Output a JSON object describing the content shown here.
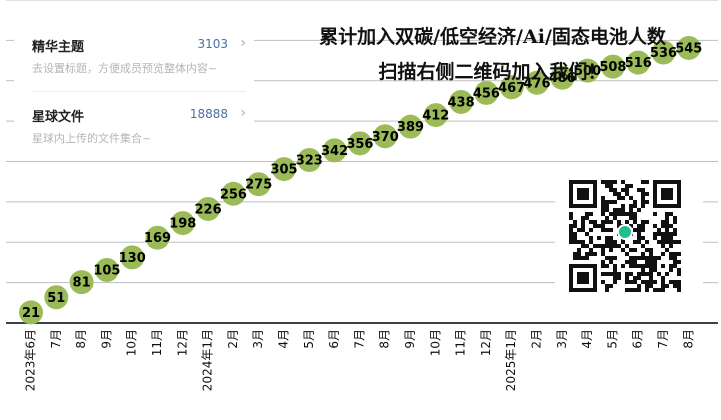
{
  "card": {
    "row1": {
      "title": "精华主题",
      "count": "3103",
      "subtitle": "去设置标题，方便成员预览整体内容~"
    },
    "row2": {
      "title": "星球文件",
      "count": "18888",
      "subtitle": "星球内上传的文件集合~"
    }
  },
  "headline": {
    "line1": "累计加入双碳/低空经济/Ai/固态电池人数",
    "line2": "扫描右侧二维码加入我们！"
  },
  "colors": {
    "point": "#9bbb59",
    "grid": "#bfbfbf",
    "axis": "#404040"
  },
  "chart_data": {
    "type": "line",
    "categories": [
      "2023年6月",
      "7月",
      "8月",
      "9月",
      "10月",
      "11月",
      "12月",
      "2024年1月",
      "2月",
      "3月",
      "4月",
      "5月",
      "6月",
      "7月",
      "8月",
      "9月",
      "10月",
      "11月",
      "12月",
      "2025年1月",
      "2月",
      "3月",
      "4月",
      "5月",
      "6月",
      "7月",
      "8月"
    ],
    "values": [
      21,
      51,
      81,
      105,
      130,
      169,
      198,
      226,
      256,
      275,
      305,
      323,
      342,
      356,
      370,
      389,
      412,
      438,
      456,
      467,
      476,
      486,
      500,
      508,
      516,
      536,
      545
    ],
    "data_labels": true,
    "grid": true,
    "ylim": [
      0,
      640
    ]
  }
}
